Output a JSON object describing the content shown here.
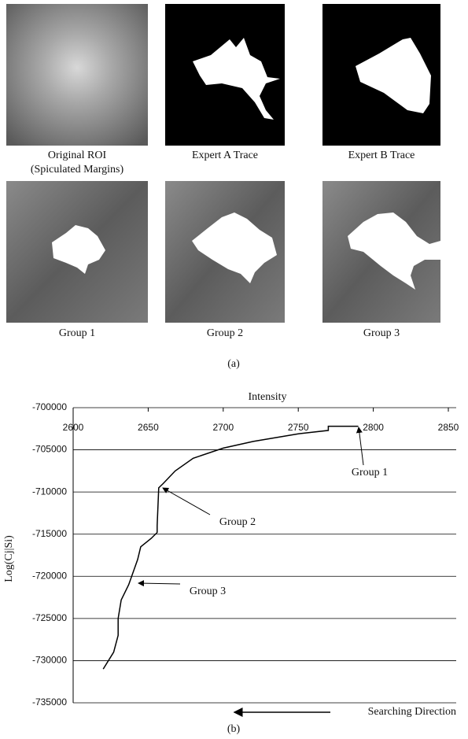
{
  "figure_a": {
    "panels": [
      {
        "caption": [
          "Original ROI",
          "(Spiculated Margins)"
        ]
      },
      {
        "caption": [
          "Expert A Trace"
        ]
      },
      {
        "caption": [
          "Expert B Trace"
        ]
      },
      {
        "caption": [
          "Group 1"
        ]
      },
      {
        "caption": [
          "Group 2"
        ]
      },
      {
        "caption": [
          "Group 3"
        ]
      }
    ],
    "label": "(a)"
  },
  "chart_data": {
    "type": "line",
    "x_label": "Intensity",
    "y_label": "Log(Cj|Si)",
    "x": [
      2620,
      2627,
      2630,
      2630,
      2632,
      2637,
      2641,
      2643,
      2645,
      2652,
      2656,
      2656,
      2657,
      2660,
      2668,
      2680,
      2700,
      2720,
      2750,
      2770,
      2770,
      2790
    ],
    "values": [
      -731000,
      -729000,
      -727000,
      -725000,
      -722800,
      -721000,
      -719000,
      -718000,
      -716500,
      -715500,
      -714800,
      -714000,
      -709500,
      -709000,
      -707500,
      -706000,
      -704800,
      -704000,
      -703100,
      -702700,
      -702200,
      -702200
    ],
    "color": "#000000",
    "xlim": [
      2600,
      2850
    ],
    "xticks": [
      2600,
      2650,
      2700,
      2750,
      2800,
      2850
    ],
    "ylim": [
      -735000,
      -700000
    ],
    "yticks": [
      -700000,
      -705000,
      -710000,
      -715000,
      -720000,
      -725000,
      -730000,
      -735000
    ],
    "grid": true,
    "annotations": [
      "Group 1",
      "Group 2",
      "Group 3"
    ],
    "direction_label": "Searching Direction"
  },
  "label_b": "(b)"
}
